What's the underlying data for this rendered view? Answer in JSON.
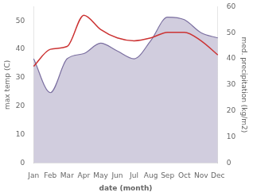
{
  "chart_data": {
    "type": "line",
    "xlabel": "date (month)",
    "ylabel": "max temp (C)",
    "y2label": "med. precipitation (kg/m2)",
    "categories": [
      "Jan",
      "Feb",
      "Mar",
      "Apr",
      "May",
      "Jun",
      "Jul",
      "Aug",
      "Sep",
      "Oct",
      "Nov",
      "Dec"
    ],
    "series": [
      {
        "name": "max temp",
        "type": "line",
        "color": "#cc3333",
        "axis": "y",
        "values": [
          34,
          40,
          41,
          52,
          47,
          44,
          43,
          44,
          46,
          46,
          43,
          38
        ]
      },
      {
        "name": "precipitation",
        "type": "area",
        "color": "#7b6fa0",
        "axis": "y2",
        "values": [
          40,
          27,
          40,
          42,
          46,
          43,
          40,
          47,
          56,
          55,
          50,
          48
        ]
      }
    ],
    "ylim": [
      0,
      55
    ],
    "yticks": [
      0,
      10,
      20,
      30,
      40,
      50
    ],
    "y2lim": [
      0,
      60
    ],
    "y2ticks": [
      0,
      10,
      20,
      30,
      40,
      50,
      60
    ],
    "grid": false
  }
}
